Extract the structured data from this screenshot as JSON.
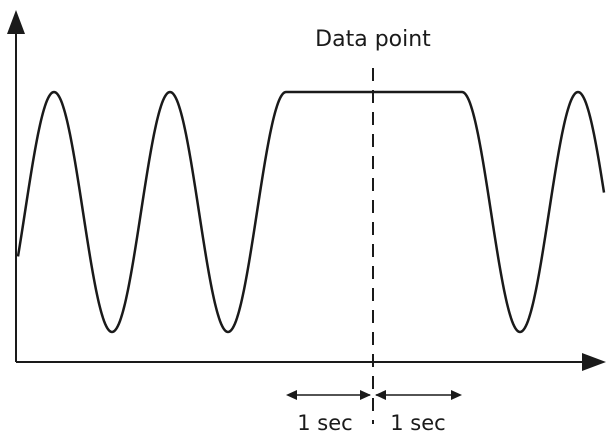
{
  "diagram": {
    "marker_label": "Data point",
    "left_interval_label": "1 sec",
    "right_interval_label": "1 sec",
    "colors": {
      "line": "#1a1a1a",
      "background": "#ffffff"
    },
    "waveform": "sinusoid with a flat held plateau around the data point"
  }
}
